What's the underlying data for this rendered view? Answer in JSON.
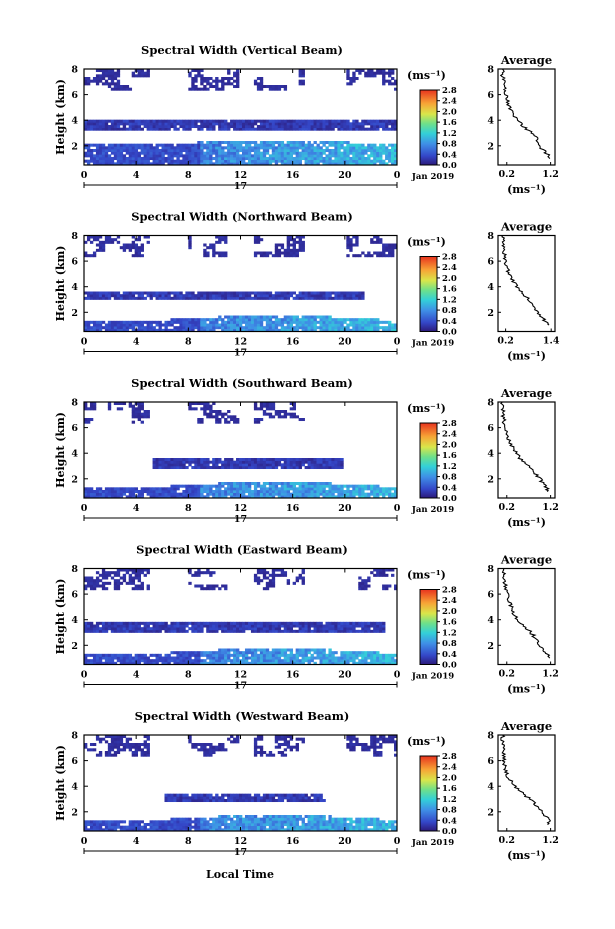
{
  "figure": {
    "x_axis_label": "Local Time",
    "date_label": "Jan 2019",
    "day_label": "17",
    "units_label": "(ms⁻¹)"
  },
  "chart_data": [
    {
      "type": "heatmap",
      "title": "Spectral Width (Vertical Beam)",
      "ylabel": "Height (km)",
      "x_ticks": [
        "0",
        "4",
        "8",
        "12",
        "16",
        "20",
        "0"
      ],
      "y_ticks": [
        "2",
        "4",
        "6",
        "8"
      ],
      "xlim": [
        0,
        24
      ],
      "ylim": [
        0.5,
        8
      ],
      "colorbar": {
        "ticks": [
          "0.0",
          "0.4",
          "0.8",
          "1.2",
          "1.6",
          "2.0",
          "2.4",
          "2.8"
        ],
        "range": [
          0,
          2.8
        ]
      },
      "profile": {
        "title": "Average",
        "xlabel": "(ms⁻¹)",
        "x_ticks": [
          "0.2",
          "1.2"
        ],
        "xlim": [
          0.0,
          1.3
        ],
        "heights": [
          1.0,
          1.3,
          1.6,
          2.0,
          2.4,
          2.8,
          3.2,
          3.6,
          4.0,
          4.4,
          4.8,
          5.2,
          5.6,
          6.0,
          6.4,
          6.8,
          7.2,
          7.6,
          8.0
        ],
        "values": [
          1.2,
          1.15,
          1.05,
          0.95,
          0.9,
          0.85,
          0.7,
          0.55,
          0.45,
          0.35,
          0.3,
          0.25,
          0.2,
          0.18,
          0.15,
          0.15,
          0.12,
          0.1,
          0.1
        ]
      }
    },
    {
      "type": "heatmap",
      "title": "Spectral Width (Northward Beam)",
      "ylabel": "Height (km)",
      "x_ticks": [
        "0",
        "4",
        "8",
        "12",
        "16",
        "20",
        "0"
      ],
      "y_ticks": [
        "2",
        "4",
        "6",
        "8"
      ],
      "xlim": [
        0,
        24
      ],
      "ylim": [
        0.5,
        8
      ],
      "colorbar": {
        "ticks": [
          "0.0",
          "0.4",
          "0.8",
          "1.2",
          "1.6",
          "2.0",
          "2.4",
          "2.8"
        ],
        "range": [
          0,
          2.8
        ]
      },
      "profile": {
        "title": "Average",
        "xlabel": "(ms⁻¹)",
        "x_ticks": [
          "0.2",
          "1.4"
        ],
        "xlim": [
          0.0,
          1.5
        ],
        "heights": [
          1.0,
          1.3,
          1.6,
          2.0,
          2.4,
          2.8,
          3.2,
          3.6,
          4.0,
          4.4,
          4.8,
          5.2,
          5.6,
          6.0,
          6.4,
          6.8,
          7.2,
          7.6,
          8.0
        ],
        "values": [
          1.35,
          1.25,
          1.15,
          1.05,
          0.95,
          0.85,
          0.75,
          0.6,
          0.5,
          0.4,
          0.32,
          0.27,
          0.22,
          0.2,
          0.18,
          0.16,
          0.15,
          0.13,
          0.12
        ]
      }
    },
    {
      "type": "heatmap",
      "title": "Spectral Width (Southward Beam)",
      "ylabel": "Height (km)",
      "x_ticks": [
        "0",
        "4",
        "8",
        "12",
        "16",
        "20",
        "0"
      ],
      "y_ticks": [
        "2",
        "4",
        "6",
        "8"
      ],
      "xlim": [
        0,
        24
      ],
      "ylim": [
        0.5,
        8
      ],
      "colorbar": {
        "ticks": [
          "0.0",
          "0.4",
          "0.8",
          "1.2",
          "1.6",
          "2.0",
          "2.4",
          "2.8"
        ],
        "range": [
          0,
          2.8
        ]
      },
      "profile": {
        "title": "Average",
        "xlabel": "(ms⁻¹)",
        "x_ticks": [
          "0.2",
          "1.2"
        ],
        "xlim": [
          0.0,
          1.3
        ],
        "heights": [
          1.0,
          1.3,
          1.6,
          2.0,
          2.4,
          2.8,
          3.2,
          3.6,
          4.0,
          4.4,
          4.8,
          5.2,
          5.6,
          6.0,
          6.4,
          6.8,
          7.2,
          7.6,
          8.0
        ],
        "values": [
          1.15,
          1.1,
          1.05,
          0.95,
          0.85,
          0.75,
          0.62,
          0.5,
          0.42,
          0.35,
          0.28,
          0.22,
          0.18,
          0.16,
          0.14,
          0.12,
          0.11,
          0.1,
          0.1
        ]
      }
    },
    {
      "type": "heatmap",
      "title": "Spectral Width (Eastward Beam)",
      "ylabel": "Height (km)",
      "x_ticks": [
        "0",
        "4",
        "8",
        "12",
        "16",
        "20",
        "0"
      ],
      "y_ticks": [
        "2",
        "4",
        "6",
        "8"
      ],
      "xlim": [
        0,
        24
      ],
      "ylim": [
        0.5,
        8
      ],
      "colorbar": {
        "ticks": [
          "0.0",
          "0.4",
          "0.8",
          "1.2",
          "1.6",
          "2.0",
          "2.4",
          "2.8"
        ],
        "range": [
          0,
          2.8
        ]
      },
      "profile": {
        "title": "Average",
        "xlabel": "(ms⁻¹)",
        "x_ticks": [
          "0.2",
          "1.2"
        ],
        "xlim": [
          0.0,
          1.3
        ],
        "heights": [
          1.0,
          1.3,
          1.6,
          2.0,
          2.4,
          2.8,
          3.2,
          3.6,
          4.0,
          4.4,
          4.8,
          5.2,
          5.6,
          6.0,
          6.4,
          6.8,
          7.2,
          7.6,
          8.0
        ],
        "values": [
          1.2,
          1.15,
          1.05,
          0.95,
          0.88,
          0.8,
          0.7,
          0.55,
          0.45,
          0.38,
          0.32,
          0.28,
          0.24,
          0.2,
          0.18,
          0.16,
          0.15,
          0.13,
          0.12
        ]
      }
    },
    {
      "type": "heatmap",
      "title": "Spectral Width (Westward Beam)",
      "ylabel": "Height (km)",
      "x_ticks": [
        "0",
        "4",
        "8",
        "12",
        "16",
        "20",
        "0"
      ],
      "y_ticks": [
        "2",
        "4",
        "6",
        "8"
      ],
      "xlim": [
        0,
        24
      ],
      "ylim": [
        0.5,
        8
      ],
      "colorbar": {
        "ticks": [
          "0.0",
          "0.4",
          "0.8",
          "1.2",
          "1.6",
          "2.0",
          "2.4",
          "2.8"
        ],
        "range": [
          0,
          2.8
        ]
      },
      "profile": {
        "title": "Average",
        "xlabel": "(ms⁻¹)",
        "x_ticks": [
          "0.2",
          "1.2"
        ],
        "xlim": [
          0.0,
          1.3
        ],
        "heights": [
          1.0,
          1.3,
          1.6,
          2.0,
          2.4,
          2.8,
          3.2,
          3.6,
          4.0,
          4.4,
          4.8,
          5.2,
          5.6,
          6.0,
          6.4,
          6.8,
          7.2,
          7.6,
          8.0
        ],
        "values": [
          1.15,
          1.15,
          1.1,
          1.0,
          0.9,
          0.8,
          0.65,
          0.5,
          0.4,
          0.3,
          0.22,
          0.18,
          0.15,
          0.13,
          0.12,
          0.11,
          0.1,
          0.1,
          0.1
        ]
      }
    }
  ]
}
